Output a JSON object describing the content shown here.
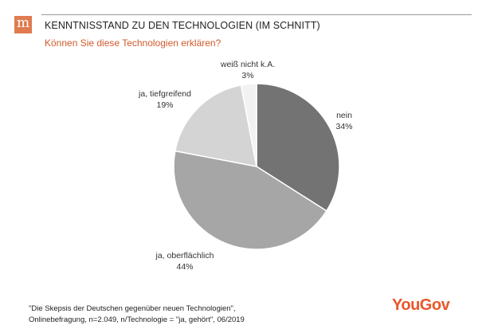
{
  "header": {
    "logo_glyph": "m",
    "title": "KENNTNISSTAND ZU DEN TECHNOLOGIEN (IM SCHNITT)",
    "subtitle": "Können Sie diese Technologien erklären?"
  },
  "chart_data": {
    "type": "pie",
    "title": "KENNTNISSTAND ZU DEN TECHNOLOGIEN (IM SCHNITT)",
    "subtitle": "Können Sie diese Technologien erklären?",
    "slices": [
      {
        "label": "nein",
        "value": 34,
        "display": "34%",
        "color": "#737373"
      },
      {
        "label": "ja, oberflächlich",
        "value": 44,
        "display": "44%",
        "color": "#a6a6a6"
      },
      {
        "label": "ja, tiefgreifend",
        "value": 19,
        "display": "19%",
        "color": "#d4d4d4"
      },
      {
        "label": "weiß nicht k.A.",
        "value": 3,
        "display": "3%",
        "color": "#f2f2f2"
      }
    ]
  },
  "footer": {
    "source_line1": "\"Die Skepsis der Deutschen gegenüber neuen Technologien\",",
    "source_line2": "Onlinebefragung, n=2.049, n/Technologie = \"ja, gehört\", 06/2019",
    "brand": "YouGov",
    "brand_color": "#e8572a"
  }
}
